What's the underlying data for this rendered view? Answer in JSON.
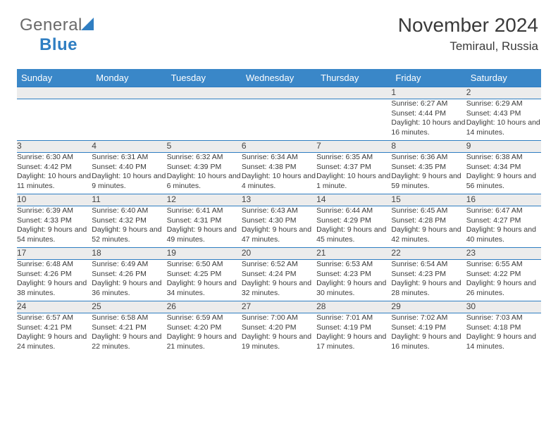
{
  "logo": {
    "text1": "General",
    "text2": "Blue"
  },
  "title": "November 2024",
  "subtitle": "Temiraul, Russia",
  "colors": {
    "header_bg": "#3a87c8",
    "row_border": "#2f7ec2",
    "daynum_bg": "#ececec",
    "text": "#3a3a3a",
    "logo_gray": "#6a6a6a",
    "logo_blue": "#2f7ec2"
  },
  "weekdays": [
    "Sunday",
    "Monday",
    "Tuesday",
    "Wednesday",
    "Thursday",
    "Friday",
    "Saturday"
  ],
  "weeks": [
    {
      "nums": [
        "",
        "",
        "",
        "",
        "",
        "1",
        "2"
      ],
      "cells": [
        null,
        null,
        null,
        null,
        null,
        {
          "sunrise": "Sunrise: 6:27 AM",
          "sunset": "Sunset: 4:44 PM",
          "daylight": "Daylight: 10 hours and 16 minutes."
        },
        {
          "sunrise": "Sunrise: 6:29 AM",
          "sunset": "Sunset: 4:43 PM",
          "daylight": "Daylight: 10 hours and 14 minutes."
        }
      ]
    },
    {
      "nums": [
        "3",
        "4",
        "5",
        "6",
        "7",
        "8",
        "9"
      ],
      "cells": [
        {
          "sunrise": "Sunrise: 6:30 AM",
          "sunset": "Sunset: 4:42 PM",
          "daylight": "Daylight: 10 hours and 11 minutes."
        },
        {
          "sunrise": "Sunrise: 6:31 AM",
          "sunset": "Sunset: 4:40 PM",
          "daylight": "Daylight: 10 hours and 9 minutes."
        },
        {
          "sunrise": "Sunrise: 6:32 AM",
          "sunset": "Sunset: 4:39 PM",
          "daylight": "Daylight: 10 hours and 6 minutes."
        },
        {
          "sunrise": "Sunrise: 6:34 AM",
          "sunset": "Sunset: 4:38 PM",
          "daylight": "Daylight: 10 hours and 4 minutes."
        },
        {
          "sunrise": "Sunrise: 6:35 AM",
          "sunset": "Sunset: 4:37 PM",
          "daylight": "Daylight: 10 hours and 1 minute."
        },
        {
          "sunrise": "Sunrise: 6:36 AM",
          "sunset": "Sunset: 4:35 PM",
          "daylight": "Daylight: 9 hours and 59 minutes."
        },
        {
          "sunrise": "Sunrise: 6:38 AM",
          "sunset": "Sunset: 4:34 PM",
          "daylight": "Daylight: 9 hours and 56 minutes."
        }
      ]
    },
    {
      "nums": [
        "10",
        "11",
        "12",
        "13",
        "14",
        "15",
        "16"
      ],
      "cells": [
        {
          "sunrise": "Sunrise: 6:39 AM",
          "sunset": "Sunset: 4:33 PM",
          "daylight": "Daylight: 9 hours and 54 minutes."
        },
        {
          "sunrise": "Sunrise: 6:40 AM",
          "sunset": "Sunset: 4:32 PM",
          "daylight": "Daylight: 9 hours and 52 minutes."
        },
        {
          "sunrise": "Sunrise: 6:41 AM",
          "sunset": "Sunset: 4:31 PM",
          "daylight": "Daylight: 9 hours and 49 minutes."
        },
        {
          "sunrise": "Sunrise: 6:43 AM",
          "sunset": "Sunset: 4:30 PM",
          "daylight": "Daylight: 9 hours and 47 minutes."
        },
        {
          "sunrise": "Sunrise: 6:44 AM",
          "sunset": "Sunset: 4:29 PM",
          "daylight": "Daylight: 9 hours and 45 minutes."
        },
        {
          "sunrise": "Sunrise: 6:45 AM",
          "sunset": "Sunset: 4:28 PM",
          "daylight": "Daylight: 9 hours and 42 minutes."
        },
        {
          "sunrise": "Sunrise: 6:47 AM",
          "sunset": "Sunset: 4:27 PM",
          "daylight": "Daylight: 9 hours and 40 minutes."
        }
      ]
    },
    {
      "nums": [
        "17",
        "18",
        "19",
        "20",
        "21",
        "22",
        "23"
      ],
      "cells": [
        {
          "sunrise": "Sunrise: 6:48 AM",
          "sunset": "Sunset: 4:26 PM",
          "daylight": "Daylight: 9 hours and 38 minutes."
        },
        {
          "sunrise": "Sunrise: 6:49 AM",
          "sunset": "Sunset: 4:26 PM",
          "daylight": "Daylight: 9 hours and 36 minutes."
        },
        {
          "sunrise": "Sunrise: 6:50 AM",
          "sunset": "Sunset: 4:25 PM",
          "daylight": "Daylight: 9 hours and 34 minutes."
        },
        {
          "sunrise": "Sunrise: 6:52 AM",
          "sunset": "Sunset: 4:24 PM",
          "daylight": "Daylight: 9 hours and 32 minutes."
        },
        {
          "sunrise": "Sunrise: 6:53 AM",
          "sunset": "Sunset: 4:23 PM",
          "daylight": "Daylight: 9 hours and 30 minutes."
        },
        {
          "sunrise": "Sunrise: 6:54 AM",
          "sunset": "Sunset: 4:23 PM",
          "daylight": "Daylight: 9 hours and 28 minutes."
        },
        {
          "sunrise": "Sunrise: 6:55 AM",
          "sunset": "Sunset: 4:22 PM",
          "daylight": "Daylight: 9 hours and 26 minutes."
        }
      ]
    },
    {
      "nums": [
        "24",
        "25",
        "26",
        "27",
        "28",
        "29",
        "30"
      ],
      "cells": [
        {
          "sunrise": "Sunrise: 6:57 AM",
          "sunset": "Sunset: 4:21 PM",
          "daylight": "Daylight: 9 hours and 24 minutes."
        },
        {
          "sunrise": "Sunrise: 6:58 AM",
          "sunset": "Sunset: 4:21 PM",
          "daylight": "Daylight: 9 hours and 22 minutes."
        },
        {
          "sunrise": "Sunrise: 6:59 AM",
          "sunset": "Sunset: 4:20 PM",
          "daylight": "Daylight: 9 hours and 21 minutes."
        },
        {
          "sunrise": "Sunrise: 7:00 AM",
          "sunset": "Sunset: 4:20 PM",
          "daylight": "Daylight: 9 hours and 19 minutes."
        },
        {
          "sunrise": "Sunrise: 7:01 AM",
          "sunset": "Sunset: 4:19 PM",
          "daylight": "Daylight: 9 hours and 17 minutes."
        },
        {
          "sunrise": "Sunrise: 7:02 AM",
          "sunset": "Sunset: 4:19 PM",
          "daylight": "Daylight: 9 hours and 16 minutes."
        },
        {
          "sunrise": "Sunrise: 7:03 AM",
          "sunset": "Sunset: 4:18 PM",
          "daylight": "Daylight: 9 hours and 14 minutes."
        }
      ]
    }
  ]
}
